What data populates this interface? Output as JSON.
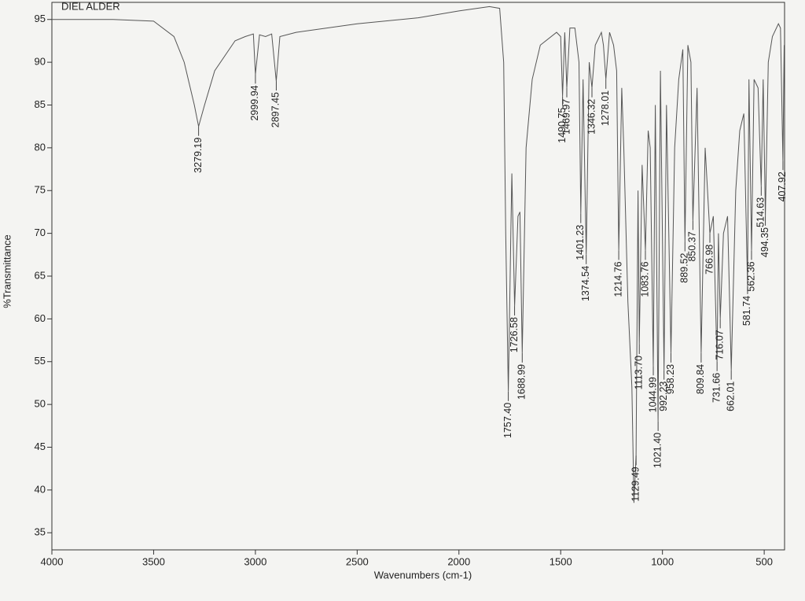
{
  "chart_data": {
    "type": "line",
    "title": "DIEL ALDER",
    "x_label": "Wavenumbers (cm-1)",
    "y_label": "%Transmittance",
    "xlim": [
      4000,
      400
    ],
    "ylim": [
      33,
      97
    ],
    "xticks": [
      4000,
      3500,
      3000,
      2500,
      2000,
      1500,
      1000,
      500
    ],
    "yticks": [
      35,
      40,
      45,
      50,
      55,
      60,
      65,
      70,
      75,
      80,
      85,
      90,
      95
    ],
    "series": [
      {
        "color": "#555555",
        "x": [
          4000,
          3700,
          3500,
          3400,
          3350,
          3300,
          3279.19,
          3250,
          3200,
          3100,
          3050,
          3010,
          2999.94,
          2980,
          2950,
          2920,
          2897.45,
          2880,
          2800,
          2500,
          2200,
          2000,
          1850,
          1800,
          1780,
          1770,
          1757.4,
          1745,
          1740,
          1726.58,
          1710,
          1700,
          1688.99,
          1670,
          1640,
          1600,
          1520,
          1500,
          1490.75,
          1480,
          1469.97,
          1455,
          1430,
          1410,
          1401.23,
          1390,
          1374.54,
          1360,
          1346.32,
          1330,
          1300,
          1290,
          1278.01,
          1260,
          1240,
          1225,
          1214.76,
          1200,
          1190,
          1170,
          1150,
          1140,
          1129.49,
          1120,
          1113.7,
          1100,
          1083.76,
          1070,
          1060,
          1044.99,
          1035,
          1021.4,
          1010,
          992.23,
          980,
          958.23,
          940,
          920,
          900,
          889.52,
          875,
          860,
          850.37,
          830,
          809.84,
          790,
          766.98,
          750,
          731.66,
          725,
          716.07,
          700,
          680,
          662.01,
          640,
          620,
          600,
          581.74,
          575,
          562.36,
          550,
          530,
          514.63,
          505,
          494.35,
          480,
          460,
          430,
          420,
          407.92,
          402
        ],
        "values": [
          95,
          95,
          94.8,
          93,
          90,
          85,
          82.5,
          85,
          89,
          92.5,
          93,
          93.3,
          88.6,
          93.2,
          93,
          93.3,
          87.8,
          93,
          93.5,
          94.5,
          95.2,
          96,
          96.5,
          96.3,
          90,
          70,
          51.5,
          70,
          77,
          61.5,
          72,
          72.5,
          56,
          80,
          88,
          92,
          93.5,
          93,
          86,
          93.5,
          87,
          94,
          94,
          90,
          72.3,
          88,
          67.5,
          90,
          87,
          92,
          93.5,
          92,
          88,
          93.5,
          92,
          89,
          68,
          87,
          80,
          62,
          52,
          38.5,
          44,
          75,
          57,
          78,
          68,
          82,
          80,
          54.5,
          85,
          48,
          89,
          54,
          85,
          56,
          80,
          88,
          91.5,
          69,
          92,
          90,
          71.5,
          87,
          56,
          80,
          70,
          72,
          55,
          70,
          60,
          70,
          72,
          54,
          75,
          82,
          84,
          64,
          88,
          68,
          88,
          87,
          75.5,
          88,
          72,
          90,
          93,
          94.5,
          94,
          78.5,
          92
        ]
      }
    ],
    "peaks": [
      {
        "x": 3279.19,
        "y": 82.5,
        "label": "3279.19"
      },
      {
        "x": 2999.94,
        "y": 88.6,
        "label": "2999.94"
      },
      {
        "x": 2897.45,
        "y": 87.8,
        "label": "2897.45"
      },
      {
        "x": 1757.4,
        "y": 51.5,
        "label": "1757.40"
      },
      {
        "x": 1726.58,
        "y": 61.5,
        "label": "1726.58"
      },
      {
        "x": 1688.99,
        "y": 56,
        "label": "1688.99"
      },
      {
        "x": 1490.75,
        "y": 86,
        "label": "1490.75"
      },
      {
        "x": 1469.97,
        "y": 87,
        "label": "1469.97"
      },
      {
        "x": 1401.23,
        "y": 72.3,
        "label": "1401.23"
      },
      {
        "x": 1374.54,
        "y": 67.5,
        "label": "1374.54"
      },
      {
        "x": 1346.32,
        "y": 87,
        "label": "1346.32"
      },
      {
        "x": 1278.01,
        "y": 88,
        "label": "1278.01"
      },
      {
        "x": 1214.76,
        "y": 68,
        "label": "1214.76"
      },
      {
        "x": 1129.49,
        "y": 44,
        "label": "1129.49"
      },
      {
        "x": 1113.7,
        "y": 57,
        "label": "1113.70"
      },
      {
        "x": 1083.76,
        "y": 68,
        "label": "1083.76"
      },
      {
        "x": 1044.99,
        "y": 54.5,
        "label": "1044.99"
      },
      {
        "x": 1021.4,
        "y": 48,
        "label": "1021.40"
      },
      {
        "x": 992.23,
        "y": 54,
        "label": "992.23"
      },
      {
        "x": 958.23,
        "y": 56,
        "label": "958.23"
      },
      {
        "x": 889.52,
        "y": 69,
        "label": "889.52"
      },
      {
        "x": 850.37,
        "y": 71.5,
        "label": "850.37"
      },
      {
        "x": 809.84,
        "y": 56,
        "label": "809.84"
      },
      {
        "x": 766.98,
        "y": 70,
        "label": "766.98"
      },
      {
        "x": 731.66,
        "y": 55,
        "label": "731.66"
      },
      {
        "x": 716.07,
        "y": 60,
        "label": "716.07"
      },
      {
        "x": 662.01,
        "y": 54,
        "label": "662.01"
      },
      {
        "x": 581.74,
        "y": 64,
        "label": "581.74"
      },
      {
        "x": 562.36,
        "y": 68,
        "label": "562.36"
      },
      {
        "x": 514.63,
        "y": 75.5,
        "label": "514.63"
      },
      {
        "x": 494.35,
        "y": 72,
        "label": "494.35"
      },
      {
        "x": 407.92,
        "y": 78.5,
        "label": "407.92"
      }
    ]
  }
}
